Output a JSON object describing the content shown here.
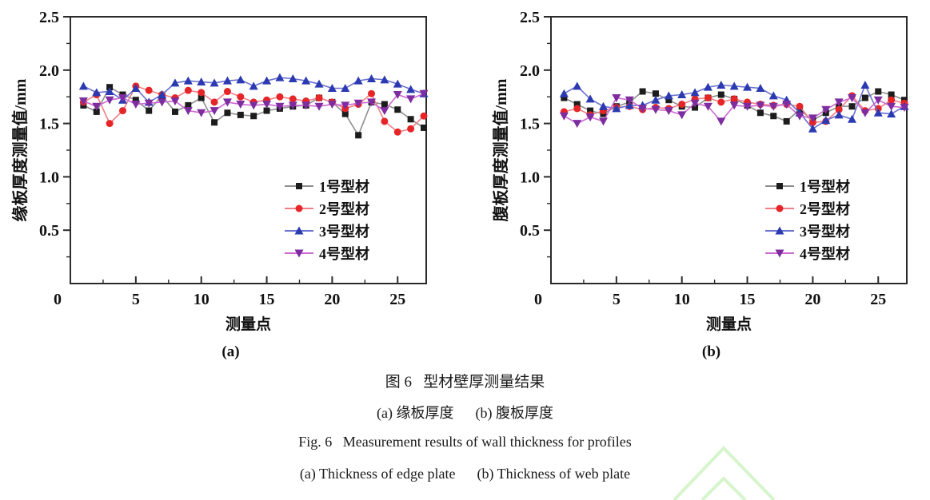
{
  "figure": {
    "caption_cn_title": "图 6   型材壁厚测量结果",
    "caption_cn_sub": "(a) 缘板厚度      (b) 腹板厚度",
    "caption_en_title": "Fig. 6   Measurement results of wall thickness for profiles",
    "caption_en_sub": "(a) Thickness of edge plate      (b) Thickness of web plate"
  },
  "watermark": {
    "color": "#d6f5cc"
  },
  "chart_data": [
    {
      "type": "line",
      "panel_label": "(a)",
      "xlabel": "测量点",
      "ylabel": "缘板厚度测量值/mm",
      "xlim": [
        0,
        27.2
      ],
      "ylim": [
        0,
        2.5
      ],
      "xticks": [
        0,
        5,
        10,
        15,
        20,
        25
      ],
      "yticks": [
        0.5,
        1.0,
        1.5,
        2.0,
        2.5
      ],
      "x": [
        1,
        2,
        3,
        4,
        5,
        6,
        7,
        8,
        9,
        10,
        11,
        12,
        13,
        14,
        15,
        16,
        17,
        18,
        19,
        20,
        21,
        22,
        23,
        24,
        25,
        26,
        27
      ],
      "grid": false,
      "legend_position": "inside-bottom-right",
      "series": [
        {
          "name": "1号型材",
          "marker": "square",
          "color": "#1c1c1c",
          "line_color": "#8f8f8f",
          "values": [
            1.67,
            1.61,
            1.84,
            1.77,
            1.72,
            1.62,
            1.76,
            1.61,
            1.67,
            1.74,
            1.51,
            1.6,
            1.58,
            1.57,
            1.62,
            1.64,
            1.66,
            1.67,
            1.74,
            1.7,
            1.59,
            1.39,
            1.7,
            1.68,
            1.63,
            1.54,
            1.46
          ]
        },
        {
          "name": "2号型材",
          "marker": "circle",
          "color": "#e62528",
          "line_color": "#ef8087",
          "values": [
            1.7,
            1.77,
            1.5,
            1.62,
            1.85,
            1.81,
            1.77,
            1.74,
            1.81,
            1.79,
            1.7,
            1.8,
            1.75,
            1.7,
            1.72,
            1.75,
            1.73,
            1.71,
            1.74,
            1.7,
            1.64,
            1.68,
            1.78,
            1.52,
            1.42,
            1.45,
            1.57
          ]
        },
        {
          "name": "3号型材",
          "marker": "triangle-up",
          "color": "#2c3ab2",
          "line_color": "#6a71cf",
          "values": [
            1.85,
            1.79,
            1.8,
            1.72,
            1.83,
            1.7,
            1.77,
            1.88,
            1.9,
            1.89,
            1.88,
            1.9,
            1.91,
            1.85,
            1.9,
            1.93,
            1.92,
            1.9,
            1.87,
            1.83,
            1.83,
            1.9,
            1.92,
            1.91,
            1.87,
            1.82,
            1.78
          ]
        },
        {
          "name": "4号型材",
          "marker": "triangle-down",
          "color": "#7e2da0",
          "line_color": "#cd68d2",
          "values": [
            1.71,
            1.66,
            1.72,
            1.74,
            1.68,
            1.69,
            1.7,
            1.71,
            1.62,
            1.6,
            1.62,
            1.7,
            1.68,
            1.67,
            1.68,
            1.66,
            1.67,
            1.67,
            1.66,
            1.68,
            1.67,
            1.69,
            1.7,
            1.62,
            1.77,
            1.73,
            1.78
          ]
        }
      ]
    },
    {
      "type": "line",
      "panel_label": "(b)",
      "xlabel": "测量点",
      "ylabel": "腹板厚度测量值/mm",
      "xlim": [
        0,
        27.2
      ],
      "ylim": [
        0,
        2.5
      ],
      "xticks": [
        0,
        5,
        10,
        15,
        20,
        25
      ],
      "yticks": [
        0.5,
        1.0,
        1.5,
        2.0,
        2.5
      ],
      "x": [
        1,
        2,
        3,
        4,
        5,
        6,
        7,
        8,
        9,
        10,
        11,
        12,
        13,
        14,
        15,
        16,
        17,
        18,
        19,
        20,
        21,
        22,
        23,
        24,
        25,
        26,
        27
      ],
      "grid": false,
      "legend_position": "inside-bottom-right",
      "series": [
        {
          "name": "1号型材",
          "marker": "square",
          "color": "#1c1c1c",
          "line_color": "#8f8f8f",
          "values": [
            1.74,
            1.68,
            1.62,
            1.59,
            1.66,
            1.7,
            1.8,
            1.78,
            1.72,
            1.66,
            1.65,
            1.74,
            1.77,
            1.73,
            1.67,
            1.6,
            1.57,
            1.52,
            1.63,
            1.53,
            1.6,
            1.66,
            1.66,
            1.74,
            1.8,
            1.77,
            1.72
          ]
        },
        {
          "name": "2号型材",
          "marker": "circle",
          "color": "#e62528",
          "line_color": "#ef8087",
          "values": [
            1.61,
            1.64,
            1.58,
            1.62,
            1.65,
            1.66,
            1.63,
            1.65,
            1.64,
            1.68,
            1.73,
            1.74,
            1.7,
            1.73,
            1.7,
            1.68,
            1.67,
            1.68,
            1.66,
            1.51,
            1.52,
            1.63,
            1.76,
            1.62,
            1.64,
            1.72,
            1.69
          ]
        },
        {
          "name": "3号型材",
          "marker": "triangle-up",
          "color": "#2c3ab2",
          "line_color": "#6a71cf",
          "values": [
            1.78,
            1.85,
            1.73,
            1.66,
            1.64,
            1.67,
            1.67,
            1.72,
            1.76,
            1.77,
            1.79,
            1.84,
            1.86,
            1.85,
            1.84,
            1.83,
            1.76,
            1.72,
            1.6,
            1.45,
            1.53,
            1.58,
            1.54,
            1.86,
            1.6,
            1.59,
            1.66
          ]
        },
        {
          "name": "4号型材",
          "marker": "triangle-down",
          "color": "#7e2da0",
          "line_color": "#cd68d2",
          "values": [
            1.57,
            1.5,
            1.56,
            1.52,
            1.74,
            1.72,
            1.64,
            1.63,
            1.62,
            1.58,
            1.69,
            1.66,
            1.52,
            1.67,
            1.66,
            1.67,
            1.66,
            1.68,
            1.57,
            1.55,
            1.63,
            1.7,
            1.74,
            1.6,
            1.72,
            1.66,
            1.65
          ]
        }
      ]
    }
  ]
}
